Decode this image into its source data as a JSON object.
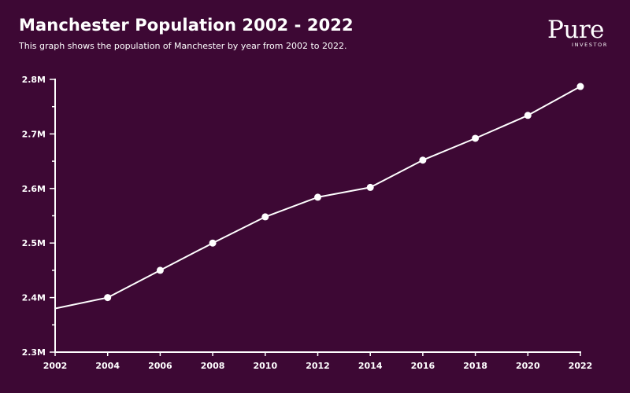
{
  "header": {
    "title": "Manchester Population 2002 - 2022",
    "subtitle": "This graph shows the population of Manchester by year from 2002 to 2022."
  },
  "logo": {
    "word": "Pure",
    "sub": "INVESTOR"
  },
  "colors": {
    "background": "#3d0834",
    "line": "#ffffff"
  },
  "chart_data": {
    "type": "line",
    "title": "Manchester Population 2002 - 2022",
    "subtitle": "This graph shows the population of Manchester by year from 2002 to 2022.",
    "xlabel": "",
    "ylabel": "",
    "x": [
      2002,
      2004,
      2006,
      2008,
      2010,
      2012,
      2014,
      2016,
      2018,
      2020,
      2022
    ],
    "series": [
      {
        "values": [
          2380000,
          2400000,
          2450000,
          2500000,
          2548000,
          2584000,
          2602000,
          2652000,
          2692000,
          2734000,
          2787000
        ],
        "markers": [
          false,
          true,
          true,
          true,
          true,
          true,
          true,
          true,
          true,
          true,
          true
        ]
      }
    ],
    "xlim": [
      2002,
      2022
    ],
    "ylim": [
      2300000,
      2800000
    ],
    "x_ticks": [
      2002,
      2004,
      2006,
      2008,
      2010,
      2012,
      2014,
      2016,
      2018,
      2020,
      2022
    ],
    "y_ticks": [
      2300000,
      2400000,
      2500000,
      2600000,
      2700000,
      2800000
    ],
    "y_tick_labels": [
      "2.3M",
      "2.4M",
      "2.5M",
      "2.6M",
      "2.7M",
      "2.8M"
    ],
    "x_tick_labels": [
      "2002",
      "2004",
      "2006",
      "2008",
      "2010",
      "2012",
      "2014",
      "2016",
      "2018",
      "2020",
      "2022"
    ],
    "grid": false,
    "legend": "none"
  }
}
